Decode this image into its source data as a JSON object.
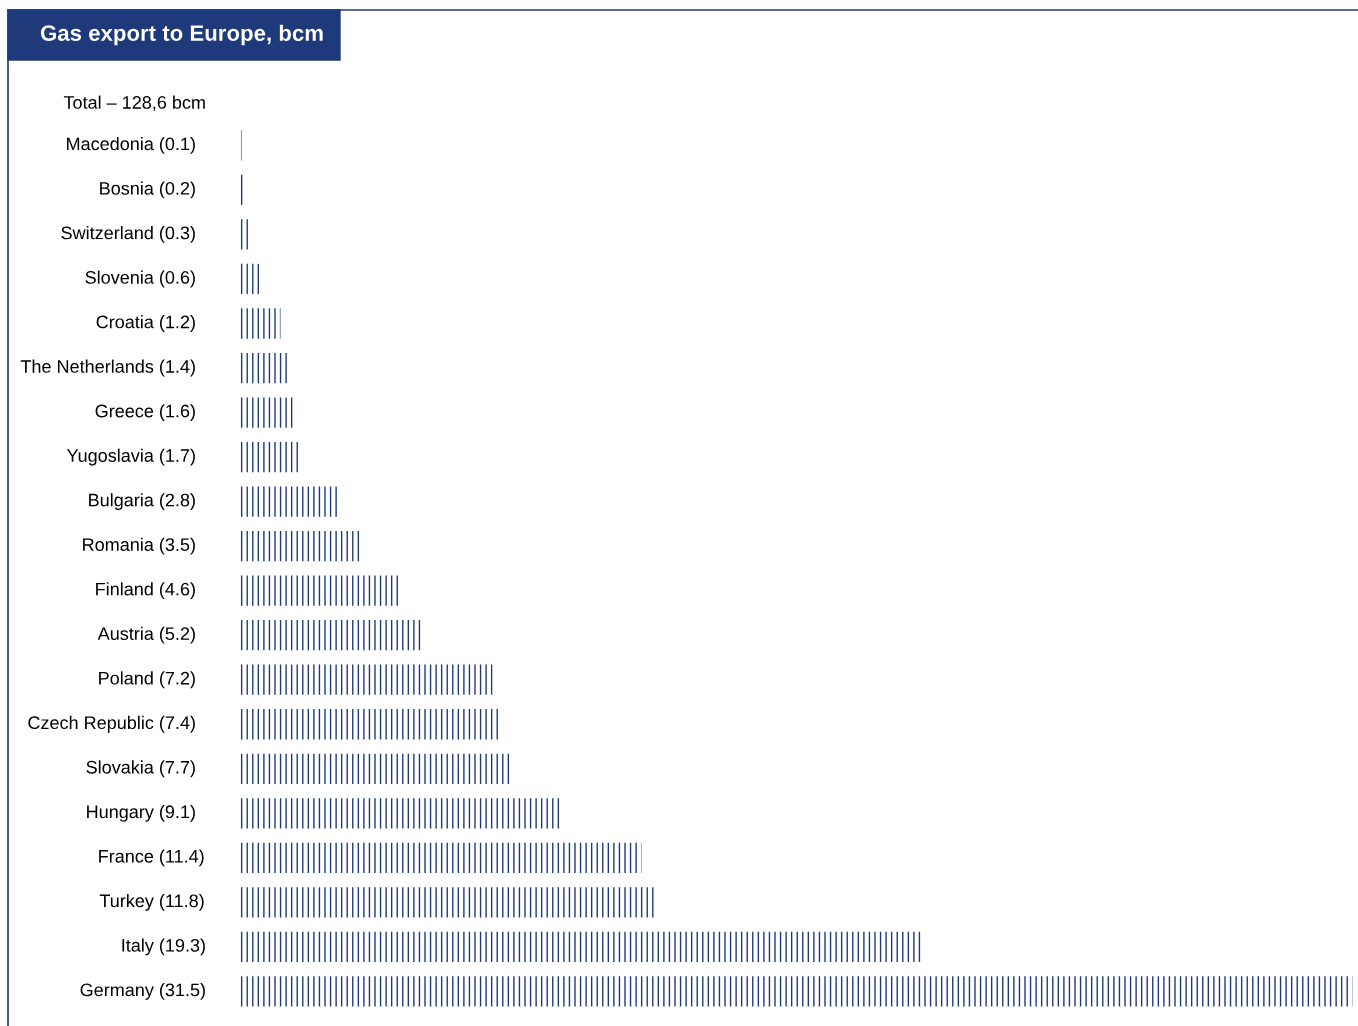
{
  "chart_data": {
    "type": "bar",
    "orientation": "horizontal",
    "title": "Gas export to Europe, bcm",
    "annotations": [
      "Total – 128,6 bcm"
    ],
    "categories": [
      "Macedonia",
      "Bosnia",
      "Switzerland",
      "Slovenia",
      "Croatia",
      "The Netherlands",
      "Greece",
      "Yugoslavia",
      "Bulgaria",
      "Romania",
      "Finland",
      "Austria",
      "Poland",
      "Czech Republic",
      "Slovakia",
      "Hungary",
      "France",
      "Turkey",
      "Italy",
      "Germany"
    ],
    "value_labels": [
      "(0.1)",
      "(0.2)",
      "(0.3)",
      "(0.6)",
      "(1.2)",
      "(1.4)",
      "(1.6)",
      "(1.7)",
      "(2.8)",
      "(3.5)",
      "(4.6)",
      "(5.2)",
      "(7.2)",
      "(7.4)",
      "(7.7)",
      "(9.1)",
      "(11.4)",
      "(11.8)",
      "(19.3)",
      "(31.5)"
    ],
    "values": [
      0.1,
      0.2,
      0.3,
      0.6,
      1.2,
      1.4,
      1.6,
      1.7,
      2.8,
      3.5,
      4.6,
      5.2,
      7.2,
      7.4,
      7.7,
      9.1,
      11.4,
      11.8,
      19.3,
      31.5
    ],
    "color": "#1f3a7a",
    "tick_labels": "y",
    "grid": false,
    "legend": false
  }
}
